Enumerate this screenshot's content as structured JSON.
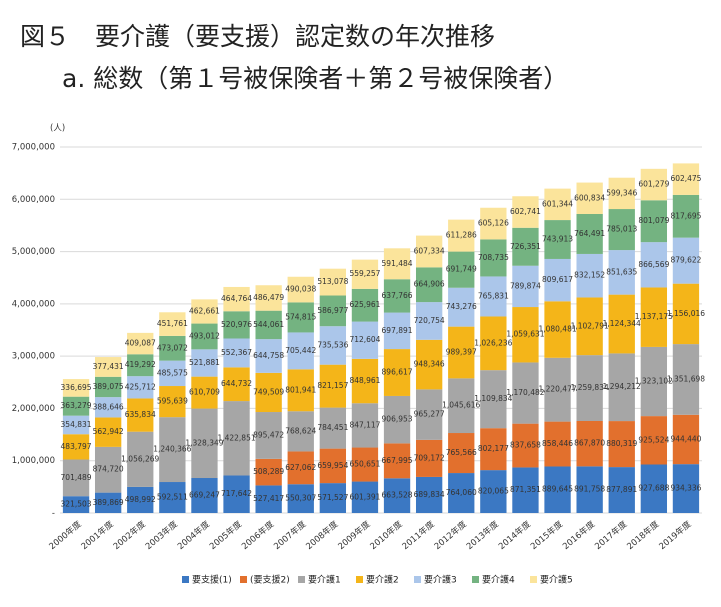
{
  "chart_data": {
    "type": "stacked-bar",
    "title": "図５　要介護（要支援）認定数の年次推移",
    "subtitle": "a.  総数（第１号被保険者＋第２号被保険者）",
    "y_unit": "(人)",
    "categories": [
      "2000年度",
      "2001年度",
      "2002年度",
      "2003年度",
      "2004年度",
      "2005年度",
      "2006年度",
      "2007年度",
      "2008年度",
      "2009年度",
      "2010年度",
      "2011年度",
      "2012年度",
      "2013年度",
      "2014年度",
      "2015年度",
      "2016年度",
      "2017年度",
      "2018年度",
      "2019年度"
    ],
    "ylim": [
      0,
      7000000
    ],
    "yticks": [
      {
        "value": 0,
        "label": "-"
      },
      {
        "value": 1000000,
        "label": "1,000,000"
      },
      {
        "value": 2000000,
        "label": "2,000,000"
      },
      {
        "value": 3000000,
        "label": "3,000,000"
      },
      {
        "value": 4000000,
        "label": "4,000,000"
      },
      {
        "value": 5000000,
        "label": "5,000,000"
      },
      {
        "value": 6000000,
        "label": "6,000,000"
      },
      {
        "value": 7000000,
        "label": "7,000,000"
      }
    ],
    "grid": true,
    "legend": "bottom",
    "series": [
      {
        "name": "要支援(1)",
        "color": "#3b78c3",
        "values": [
          321503,
          389869,
          498992,
          592511,
          669247,
          717642,
          527417,
          550307,
          571527,
          601391,
          663528,
          689834,
          764060,
          820065,
          871351,
          889645,
          891758,
          877891,
          927688,
          934336
        ],
        "value_labels": [
          "321,503",
          "389,869",
          "498,992",
          "592,511",
          "669,247",
          "717,642",
          "527,417",
          "550,307",
          "571,527",
          "601,391",
          "663,528",
          "689,834",
          "764,060",
          "820,065",
          "871,351",
          "889,645",
          "891,758",
          "877,891",
          "927,688",
          "934,336"
        ]
      },
      {
        "name": "(要支援2)",
        "color": "#e2702d",
        "values": [
          null,
          null,
          null,
          null,
          null,
          null,
          508289,
          627062,
          659954,
          650651,
          667995,
          709172,
          765566,
          802177,
          837658,
          858446,
          867870,
          880319,
          925524,
          944440
        ],
        "value_labels": [
          null,
          null,
          null,
          null,
          null,
          null,
          "508,289",
          "627,062",
          "659,954",
          "650,651",
          "667,995",
          "709,172",
          "765,566",
          "802,177",
          "837,658",
          "858,446",
          "867,870",
          "880,319",
          "925,524",
          "944,440"
        ]
      },
      {
        "name": "要介護1",
        "color": "#a6a6a6",
        "values": [
          701489,
          874720,
          1056269,
          1240366,
          1328349,
          1422851,
          895472,
          768624,
          784451,
          847117,
          906953,
          965277,
          1045616,
          1109834,
          1170482,
          1220477,
          1259834,
          1294212,
          1323102,
          1351698
        ],
        "value_labels": [
          "701,489",
          "874,720",
          "1,056,269",
          "1,240,366",
          "1,328,349",
          "1,422,851",
          "895,472",
          "768,624",
          "784,451",
          "847,117",
          "906,953",
          "965,277",
          "1,045,616",
          "1,109,834",
          "1,170,482",
          "1,220,477",
          "1,259,834",
          "1,294,212",
          "1,323,102",
          "1,351,698"
        ]
      },
      {
        "name": "要介護2",
        "color": "#f4b519",
        "values": [
          483797,
          562942,
          635834,
          595639,
          610709,
          644732,
          749509,
          801941,
          821157,
          848961,
          896617,
          948346,
          989397,
          1026236,
          1059631,
          1080481,
          1102791,
          1124344,
          1137175,
          1156016
        ],
        "value_labels": [
          "483,797",
          "562,942",
          "635,834",
          "595,639",
          "610,709",
          "644,732",
          "749,509",
          "801,941",
          "821,157",
          "848,961",
          "896,617",
          "948,346",
          "989,397",
          "1,026,236",
          "1,059,631",
          "1,080,481",
          "1,102,791",
          "1,124,344",
          "1,137,175",
          "1,156,016"
        ]
      },
      {
        "name": "要介護3",
        "color": "#abc6ea",
        "values": [
          354831,
          388646,
          425712,
          485575,
          521881,
          552367,
          644758,
          705442,
          735536,
          712604,
          697891,
          720754,
          743276,
          765831,
          789874,
          809617,
          832152,
          851635,
          866569,
          879622
        ],
        "value_labels": [
          "354,831",
          "388,646",
          "425,712",
          "485,575",
          "521,881",
          "552,367",
          "644,758",
          "705,442",
          "735,536",
          "712,604",
          "697,891",
          "720,754",
          "743,276",
          "765,831",
          "789,874",
          "809,617",
          "832,152",
          "851,635",
          "866,569",
          "879,622"
        ]
      },
      {
        "name": "要介護4",
        "color": "#74b381",
        "values": [
          363279,
          389075,
          419292,
          473072,
          493012,
          520976,
          544061,
          574815,
          586977,
          625961,
          637766,
          664906,
          691749,
          708735,
          726351,
          743913,
          764491,
          785013,
          801079,
          817695
        ],
        "value_labels": [
          "363,279",
          "389,075",
          "419,292",
          "473,072",
          "493,012",
          "520,976",
          "544,061",
          "574,815",
          "586,977",
          "625,961",
          "637,766",
          "664,906",
          "691,749",
          "708,735",
          "726,351",
          "743,913",
          "764,491",
          "785,013",
          "801,079",
          "817,695"
        ]
      },
      {
        "name": "要介護5",
        "color": "#fbe49b",
        "values": [
          336695,
          377431,
          409087,
          451761,
          462661,
          464764,
          486479,
          490038,
          513078,
          559257,
          591484,
          607334,
          611286,
          605126,
          602741,
          601344,
          600834,
          599346,
          601279,
          602475
        ],
        "value_labels": [
          "336,695",
          "377,431",
          "409,087",
          "451,761",
          "462,661",
          "464,764",
          "486,479",
          "490,038",
          "513,078",
          "559,257",
          "591,484",
          "607,334",
          "611,286",
          "605,126",
          "602,741",
          "601,344",
          "600,834",
          "599,346",
          "601,279",
          "602,475"
        ]
      }
    ]
  }
}
